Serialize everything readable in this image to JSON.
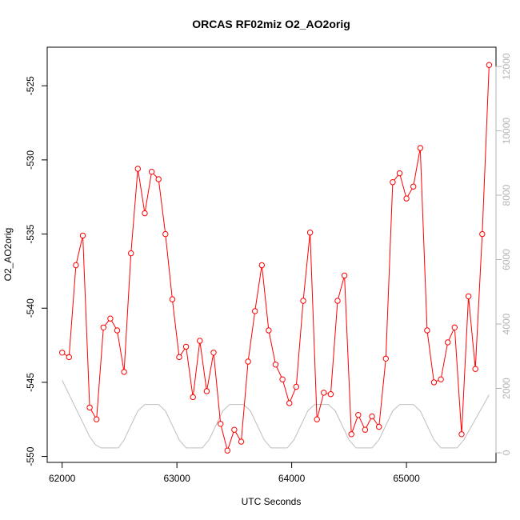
{
  "chart_data": {
    "type": "line",
    "title": "ORCAS RF02miz O2_AO2orig",
    "xlabel": "UTC Seconds",
    "ylabel": "O2_AO2orig",
    "xlim": [
      61870,
      65780
    ],
    "ylim": [
      -550.4,
      -522.4
    ],
    "y2lim": [
      -300,
      12600
    ],
    "x_ticks": [
      62000,
      63000,
      64000,
      65000
    ],
    "y_ticks": [
      -550,
      -545,
      -540,
      -535,
      -530,
      -525
    ],
    "y2_ticks": [
      0,
      2000,
      4000,
      6000,
      8000,
      10000,
      12000
    ],
    "colors": {
      "series": "#ff0000",
      "altitude": "#bebebe"
    },
    "series": [
      {
        "values": [
          [
            62000,
            -543.0
          ],
          [
            62060,
            -543.3
          ],
          [
            62120,
            -537.1
          ],
          [
            62180,
            -535.1
          ],
          [
            62240,
            -546.7
          ],
          [
            62300,
            -547.5
          ],
          [
            62360,
            -541.3
          ],
          [
            62420,
            -540.7
          ],
          [
            62480,
            -541.5
          ],
          [
            62540,
            -544.3
          ],
          [
            62600,
            -536.3
          ],
          [
            62660,
            -530.6
          ],
          [
            62720,
            -533.6
          ],
          [
            62780,
            -530.8
          ],
          [
            62840,
            -531.3
          ],
          [
            62900,
            -535.0
          ],
          [
            62960,
            -539.4
          ],
          [
            63020,
            -543.3
          ],
          [
            63080,
            -542.6
          ],
          [
            63140,
            -546.0
          ],
          [
            63200,
            -542.2
          ],
          [
            63260,
            -545.6
          ],
          [
            63320,
            -543.0
          ],
          [
            63380,
            -547.8
          ],
          [
            63440,
            -549.6
          ],
          [
            63500,
            -548.2
          ],
          [
            63560,
            -549.0
          ],
          [
            63620,
            -543.6
          ],
          [
            63680,
            -540.2
          ],
          [
            63740,
            -537.1
          ],
          [
            63800,
            -541.5
          ],
          [
            63860,
            -543.8
          ],
          [
            63920,
            -544.8
          ],
          [
            63980,
            -546.4
          ],
          [
            64040,
            -545.3
          ],
          [
            64100,
            -539.5
          ],
          [
            64160,
            -534.9
          ],
          [
            64220,
            -547.5
          ],
          [
            64280,
            -545.7
          ],
          [
            64340,
            -545.8
          ],
          [
            64400,
            -539.5
          ],
          [
            64460,
            -537.8
          ],
          [
            64520,
            -548.5
          ],
          [
            64580,
            -547.2
          ],
          [
            64640,
            -548.2
          ],
          [
            64700,
            -547.3
          ],
          [
            64760,
            -548.0
          ],
          [
            64820,
            -543.4
          ],
          [
            64880,
            -531.5
          ],
          [
            64940,
            -530.9
          ],
          [
            65000,
            -532.6
          ],
          [
            65060,
            -531.8
          ],
          [
            65120,
            -529.2
          ],
          [
            65180,
            -541.5
          ],
          [
            65240,
            -545.0
          ],
          [
            65300,
            -544.8
          ],
          [
            65360,
            -542.3
          ],
          [
            65420,
            -541.3
          ],
          [
            65480,
            -548.5
          ],
          [
            65540,
            -539.2
          ],
          [
            65600,
            -544.1
          ],
          [
            65660,
            -535.0
          ],
          [
            65720,
            -523.6
          ]
        ]
      },
      {
        "axis": "right",
        "values": [
          [
            62000,
            2250
          ],
          [
            62240,
            500
          ],
          [
            62290,
            250
          ],
          [
            62340,
            150
          ],
          [
            62490,
            150
          ],
          [
            62540,
            400
          ],
          [
            62660,
            1300
          ],
          [
            62720,
            1500
          ],
          [
            62840,
            1500
          ],
          [
            62900,
            1300
          ],
          [
            63020,
            400
          ],
          [
            63080,
            150
          ],
          [
            63220,
            150
          ],
          [
            63280,
            400
          ],
          [
            63400,
            1300
          ],
          [
            63460,
            1500
          ],
          [
            63580,
            1500
          ],
          [
            63640,
            1300
          ],
          [
            63760,
            400
          ],
          [
            63820,
            150
          ],
          [
            63960,
            150
          ],
          [
            64020,
            400
          ],
          [
            64140,
            1300
          ],
          [
            64200,
            1500
          ],
          [
            64320,
            1500
          ],
          [
            64380,
            1300
          ],
          [
            64500,
            400
          ],
          [
            64560,
            150
          ],
          [
            64700,
            150
          ],
          [
            64760,
            400
          ],
          [
            64880,
            1300
          ],
          [
            64940,
            1500
          ],
          [
            65060,
            1500
          ],
          [
            65120,
            1300
          ],
          [
            65240,
            400
          ],
          [
            65300,
            150
          ],
          [
            65440,
            150
          ],
          [
            65500,
            400
          ],
          [
            65720,
            1800
          ]
        ]
      }
    ]
  }
}
